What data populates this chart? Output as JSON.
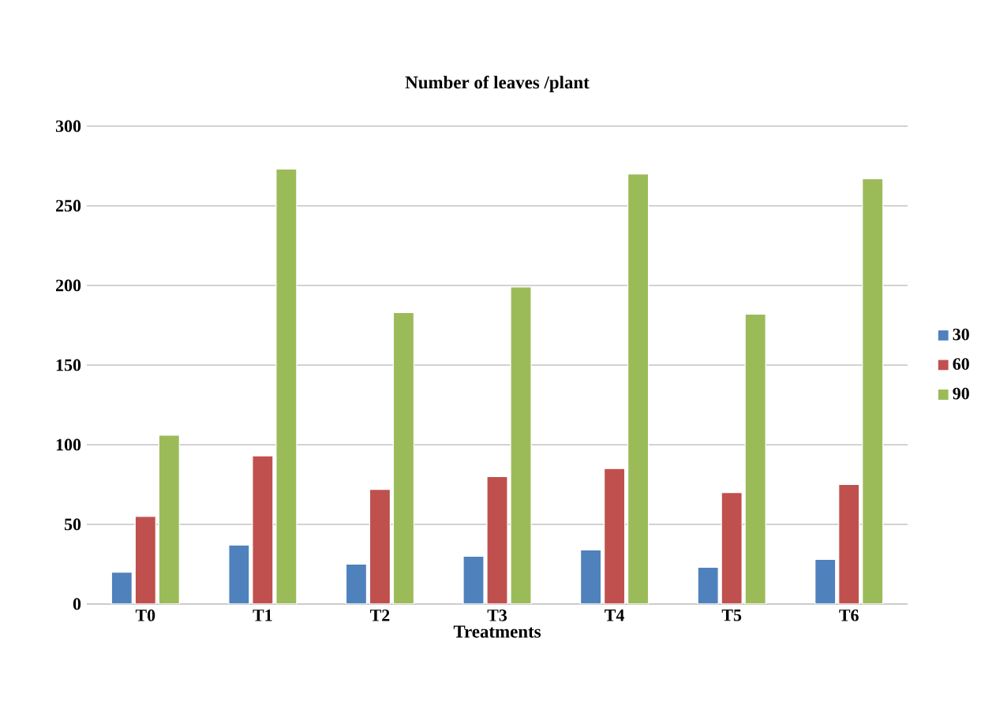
{
  "chart_data": {
    "type": "bar",
    "title": "Number of leaves /plant",
    "xlabel": "Treatments",
    "categories": [
      "T0",
      "T1",
      "T2",
      "T3",
      "T4",
      "T5",
      "T6"
    ],
    "series": [
      {
        "name": "30",
        "color": "#4f81bd",
        "values": [
          20,
          37,
          25,
          30,
          34,
          23,
          28
        ]
      },
      {
        "name": "60",
        "color": "#c0504d",
        "values": [
          55,
          93,
          72,
          80,
          85,
          70,
          75
        ]
      },
      {
        "name": "90",
        "color": "#9bbb59",
        "values": [
          106,
          273,
          183,
          199,
          270,
          182,
          267
        ]
      }
    ],
    "ylim": [
      0,
      300
    ],
    "yticks": [
      0,
      50,
      100,
      150,
      200,
      250,
      300
    ],
    "grid": "y",
    "legend": "right"
  }
}
